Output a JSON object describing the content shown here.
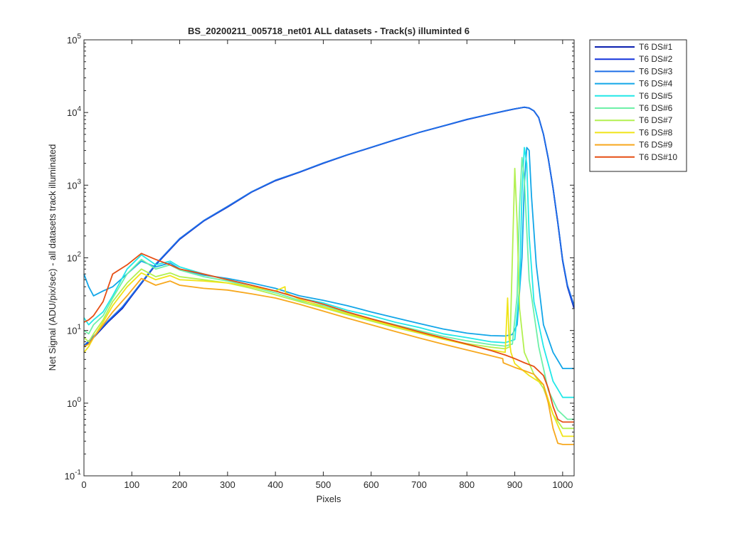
{
  "chart_data": {
    "type": "line",
    "title": "BS_20200211_005718_net01 ALL datasets - Track(s) illuminted 6",
    "xlabel": "Pixels",
    "ylabel": "Net Signal (ADU/pix/sec) - all datasets track illuminated",
    "xlim": [
      0,
      1024
    ],
    "ylim": [
      0.1,
      100000
    ],
    "yscale": "log",
    "grid": false,
    "legend_position": "outside-top-right",
    "x_ticks": [
      0,
      100,
      200,
      300,
      400,
      500,
      600,
      700,
      800,
      900,
      1000
    ],
    "x_tick_labels": [
      "0",
      "100",
      "200",
      "300",
      "400",
      "500",
      "600",
      "700",
      "800",
      "900",
      "1000"
    ],
    "y_ticks": [
      0.1,
      1,
      10,
      100,
      1000,
      10000,
      100000
    ],
    "y_tick_labels": [
      {
        "base": "10",
        "exp": "-1"
      },
      {
        "base": "10",
        "exp": "0"
      },
      {
        "base": "10",
        "exp": "1"
      },
      {
        "base": "10",
        "exp": "2"
      },
      {
        "base": "10",
        "exp": "3"
      },
      {
        "base": "10",
        "exp": "4"
      },
      {
        "base": "10",
        "exp": "5"
      }
    ],
    "series": [
      {
        "name": "T6 DS#1",
        "color": "#0a1fb0",
        "x": [
          0,
          20,
          50,
          80,
          100,
          150,
          200,
          250,
          300,
          350,
          400,
          450,
          500,
          550,
          600,
          650,
          700,
          750,
          800,
          850,
          880,
          900,
          920,
          930,
          940,
          950,
          960,
          970,
          980,
          990,
          1000,
          1010,
          1024
        ],
        "y": [
          6,
          8,
          13,
          20,
          30,
          80,
          180,
          320,
          500,
          800,
          1150,
          1500,
          2000,
          2600,
          3300,
          4200,
          5300,
          6500,
          8000,
          9500,
          10500,
          11200,
          11800,
          11500,
          10500,
          8500,
          5000,
          2300,
          900,
          300,
          90,
          40,
          20
        ]
      },
      {
        "name": "T6 DS#2",
        "color": "#1333dc",
        "x": [
          0,
          20,
          50,
          80,
          100,
          150,
          200,
          250,
          300,
          350,
          400,
          450,
          500,
          550,
          600,
          650,
          700,
          750,
          800,
          850,
          880,
          900,
          920,
          930,
          940,
          950,
          960,
          970,
          980,
          990,
          1000,
          1010,
          1024
        ],
        "y": [
          6.1,
          8.2,
          13.3,
          20.5,
          30.5,
          81,
          182,
          322,
          505,
          805,
          1160,
          1510,
          2010,
          2610,
          3310,
          4210,
          5310,
          6510,
          8020,
          9520,
          10520,
          11220,
          11820,
          11520,
          10520,
          8520,
          5020,
          2320,
          910,
          305,
          92,
          41,
          21
        ]
      },
      {
        "name": "T6 DS#3",
        "color": "#1f6fe6",
        "x": [
          0,
          20,
          50,
          80,
          100,
          150,
          200,
          250,
          300,
          350,
          400,
          450,
          500,
          550,
          600,
          650,
          700,
          750,
          800,
          850,
          880,
          900,
          920,
          930,
          940,
          950,
          960,
          970,
          980,
          990,
          1000,
          1010,
          1024
        ],
        "y": [
          6.2,
          8.3,
          13.5,
          21,
          31,
          82,
          184,
          325,
          510,
          810,
          1170,
          1520,
          2020,
          2620,
          3320,
          4220,
          5320,
          6520,
          8040,
          9540,
          10540,
          11240,
          11840,
          11540,
          10540,
          8540,
          5040,
          2340,
          920,
          310,
          94,
          42,
          22
        ]
      },
      {
        "name": "T6 DS#4",
        "color": "#12a6e8",
        "x": [
          0,
          10,
          20,
          40,
          60,
          90,
          120,
          150,
          180,
          200,
          250,
          300,
          350,
          400,
          450,
          500,
          550,
          600,
          650,
          700,
          750,
          800,
          850,
          880,
          895,
          905,
          915,
          920,
          925,
          930,
          935,
          945,
          960,
          980,
          1000,
          1024
        ],
        "y": [
          60,
          40,
          30,
          35,
          40,
          60,
          90,
          75,
          85,
          70,
          58,
          52,
          45,
          38,
          30,
          26,
          22,
          18,
          15,
          12.5,
          10.5,
          9.2,
          8.5,
          8.4,
          8.8,
          12,
          100,
          1000,
          3300,
          3000,
          700,
          80,
          12,
          5,
          3.0,
          3.0
        ]
      },
      {
        "name": "T6 DS#5",
        "color": "#22e8e8",
        "x": [
          0,
          10,
          20,
          40,
          60,
          90,
          120,
          150,
          180,
          200,
          250,
          300,
          350,
          400,
          450,
          500,
          550,
          600,
          650,
          700,
          750,
          800,
          850,
          880,
          900,
          910,
          915,
          920,
          925,
          930,
          940,
          960,
          980,
          1000,
          1024
        ],
        "y": [
          15,
          12,
          14,
          18,
          30,
          70,
          110,
          80,
          90,
          75,
          60,
          50,
          42,
          35,
          28,
          24,
          19,
          16,
          13,
          11,
          9,
          8,
          7,
          6.8,
          7.5,
          40,
          800,
          3300,
          2000,
          200,
          25,
          6,
          2,
          1.2,
          1.2
        ]
      },
      {
        "name": "T6 DS#6",
        "color": "#6ef0a8",
        "x": [
          0,
          10,
          20,
          40,
          60,
          90,
          120,
          150,
          180,
          200,
          250,
          300,
          350,
          400,
          450,
          500,
          550,
          600,
          650,
          700,
          750,
          800,
          850,
          880,
          895,
          905,
          910,
          915,
          920,
          930,
          950,
          970,
          990,
          1010,
          1024
        ],
        "y": [
          10,
          9,
          12,
          16,
          28,
          60,
          95,
          70,
          80,
          68,
          55,
          48,
          40,
          33,
          26,
          22,
          17.5,
          14.5,
          12,
          10,
          8.3,
          7.2,
          6.4,
          6.1,
          6.5,
          30,
          500,
          2400,
          1200,
          50,
          6,
          1.5,
          0.8,
          0.6,
          0.6
        ]
      },
      {
        "name": "T6 DS#7",
        "color": "#b2f050",
        "x": [
          0,
          10,
          20,
          40,
          60,
          90,
          120,
          150,
          180,
          200,
          250,
          300,
          350,
          400,
          450,
          500,
          550,
          600,
          650,
          700,
          750,
          800,
          850,
          880,
          890,
          895,
          900,
          905,
          910,
          920,
          940,
          960,
          980,
          1000,
          1024
        ],
        "y": [
          8,
          7,
          9,
          14,
          25,
          45,
          70,
          55,
          62,
          55,
          50,
          45,
          38,
          31,
          25,
          20.5,
          16.5,
          13.5,
          11,
          9.2,
          7.6,
          6.6,
          5.9,
          5.6,
          6,
          100,
          1700,
          300,
          20,
          5,
          2.5,
          1.6,
          0.7,
          0.45,
          0.45
        ]
      },
      {
        "name": "T6 DS#8",
        "color": "#f0e418",
        "x": [
          0,
          10,
          20,
          40,
          60,
          90,
          120,
          150,
          180,
          200,
          250,
          300,
          350,
          400,
          420,
          421,
          450,
          500,
          550,
          600,
          650,
          700,
          750,
          800,
          850,
          880,
          885,
          888,
          892,
          900,
          930,
          960,
          980,
          1000,
          1024
        ],
        "y": [
          5,
          6,
          8,
          13,
          22,
          40,
          62,
          50,
          57,
          50,
          48,
          45,
          40,
          35,
          40,
          33,
          27,
          21,
          17,
          14,
          11.3,
          9.3,
          7.6,
          6.4,
          5.4,
          5.0,
          28,
          8,
          5,
          3.5,
          2.4,
          1.8,
          0.7,
          0.35,
          0.35
        ]
      },
      {
        "name": "T6 DS#9",
        "color": "#f7a81e",
        "x": [
          0,
          10,
          20,
          40,
          60,
          90,
          120,
          150,
          180,
          200,
          250,
          300,
          350,
          400,
          450,
          500,
          550,
          600,
          650,
          700,
          750,
          800,
          850,
          875,
          876,
          880,
          900,
          920,
          940,
          960,
          970,
          980,
          990,
          1000,
          1024
        ],
        "y": [
          6,
          6.5,
          8,
          12,
          18,
          30,
          52,
          42,
          48,
          42,
          38,
          36,
          32,
          28,
          23,
          18.5,
          14.8,
          12,
          9.7,
          7.9,
          6.5,
          5.4,
          4.5,
          4.1,
          3.6,
          3.5,
          3.1,
          2.8,
          2.5,
          1.8,
          1.0,
          0.45,
          0.28,
          0.27,
          0.27
        ]
      },
      {
        "name": "T6 DS#10",
        "color": "#e64e14",
        "x": [
          0,
          10,
          20,
          40,
          60,
          90,
          120,
          150,
          180,
          200,
          250,
          300,
          350,
          400,
          450,
          500,
          550,
          600,
          650,
          700,
          750,
          800,
          850,
          880,
          900,
          920,
          940,
          960,
          970,
          980,
          990,
          1000,
          1024
        ],
        "y": [
          13,
          14,
          16,
          25,
          60,
          80,
          115,
          95,
          80,
          70,
          60,
          50,
          42,
          35,
          28,
          23,
          18,
          14.5,
          11.8,
          9.6,
          7.9,
          6.5,
          5.3,
          4.6,
          4.1,
          3.6,
          3.2,
          2.4,
          1.6,
          0.9,
          0.6,
          0.55,
          0.55
        ]
      }
    ]
  }
}
